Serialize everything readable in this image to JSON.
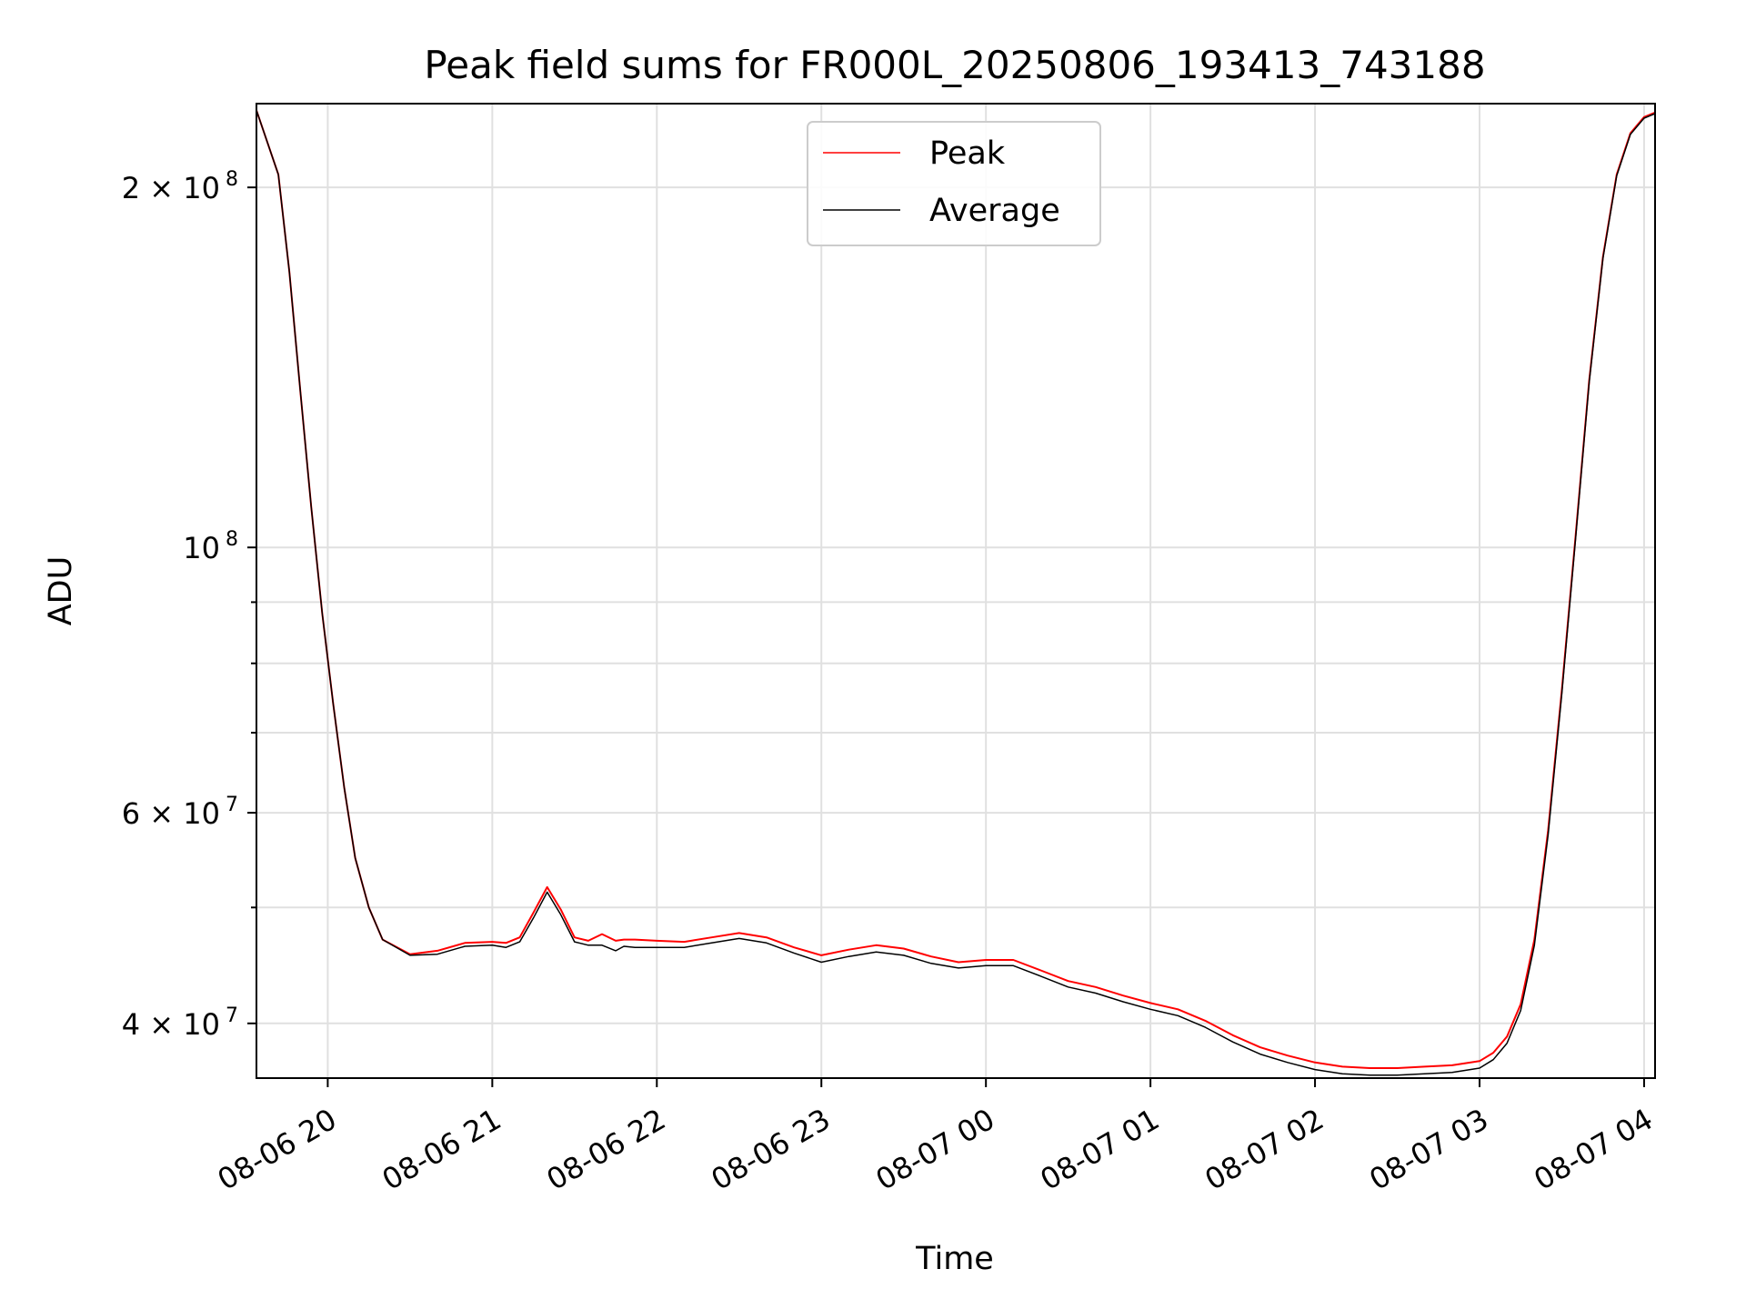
{
  "chart_data": {
    "type": "line",
    "title": "Peak field sums for FR000L_20250806_193413_743188",
    "xlabel": "Time",
    "ylabel": "ADU",
    "yscale": "log",
    "grid": true,
    "legend_position": "top-center",
    "xlim": [
      "2025-08-06 19:34",
      "2025-08-07 04:04"
    ],
    "ylim": [
      36000000,
      235000000
    ],
    "x_ticks": [
      {
        "value": "2025-08-06 20:00",
        "label": "08-06 20"
      },
      {
        "value": "2025-08-06 21:00",
        "label": "08-06 21"
      },
      {
        "value": "2025-08-06 22:00",
        "label": "08-06 22"
      },
      {
        "value": "2025-08-06 23:00",
        "label": "08-06 23"
      },
      {
        "value": "2025-08-07 00:00",
        "label": "08-07 00"
      },
      {
        "value": "2025-08-07 01:00",
        "label": "08-07 01"
      },
      {
        "value": "2025-08-07 02:00",
        "label": "08-07 02"
      },
      {
        "value": "2025-08-07 03:00",
        "label": "08-07 03"
      },
      {
        "value": "2025-08-07 04:00",
        "label": "08-07 04"
      }
    ],
    "y_ticks_major": [
      {
        "value": 40000000,
        "label": "4 × 10",
        "exp": "7"
      },
      {
        "value": 60000000,
        "label": "6 × 10",
        "exp": "7"
      },
      {
        "value": 100000000,
        "label": "10",
        "exp": "8"
      },
      {
        "value": 200000000,
        "label": "2 × 10",
        "exp": "8"
      }
    ],
    "y_ticks_minor": [
      50000000,
      70000000,
      80000000,
      90000000,
      300000000
    ],
    "series": [
      {
        "name": "Peak",
        "color": "#ff0000",
        "x": [
          "2025-08-06 19:34",
          "2025-08-06 19:42",
          "2025-08-06 19:46",
          "2025-08-06 19:50",
          "2025-08-06 19:54",
          "2025-08-06 19:58",
          "2025-08-06 20:02",
          "2025-08-06 20:06",
          "2025-08-06 20:10",
          "2025-08-06 20:15",
          "2025-08-06 20:20",
          "2025-08-06 20:30",
          "2025-08-06 20:40",
          "2025-08-06 20:50",
          "2025-08-06 21:00",
          "2025-08-06 21:05",
          "2025-08-06 21:10",
          "2025-08-06 21:15",
          "2025-08-06 21:20",
          "2025-08-06 21:25",
          "2025-08-06 21:30",
          "2025-08-06 21:35",
          "2025-08-06 21:40",
          "2025-08-06 21:45",
          "2025-08-06 21:48",
          "2025-08-06 21:52",
          "2025-08-06 22:00",
          "2025-08-06 22:10",
          "2025-08-06 22:20",
          "2025-08-06 22:30",
          "2025-08-06 22:40",
          "2025-08-06 22:50",
          "2025-08-06 23:00",
          "2025-08-06 23:10",
          "2025-08-06 23:20",
          "2025-08-06 23:30",
          "2025-08-06 23:40",
          "2025-08-06 23:50",
          "2025-08-07 00:00",
          "2025-08-07 00:10",
          "2025-08-07 00:20",
          "2025-08-07 00:30",
          "2025-08-07 00:40",
          "2025-08-07 00:50",
          "2025-08-07 01:00",
          "2025-08-07 01:10",
          "2025-08-07 01:20",
          "2025-08-07 01:30",
          "2025-08-07 01:40",
          "2025-08-07 01:50",
          "2025-08-07 02:00",
          "2025-08-07 02:10",
          "2025-08-07 02:20",
          "2025-08-07 02:30",
          "2025-08-07 02:40",
          "2025-08-07 02:50",
          "2025-08-07 03:00",
          "2025-08-07 03:05",
          "2025-08-07 03:10",
          "2025-08-07 03:15",
          "2025-08-07 03:20",
          "2025-08-07 03:25",
          "2025-08-07 03:30",
          "2025-08-07 03:35",
          "2025-08-07 03:40",
          "2025-08-07 03:45",
          "2025-08-07 03:50",
          "2025-08-07 03:55",
          "2025-08-07 04:00",
          "2025-08-07 04:04"
        ],
        "y": [
          232000000,
          205000000,
          170000000,
          135000000,
          108000000,
          88000000,
          74000000,
          63000000,
          55000000,
          50000000,
          47000000,
          45700000,
          46000000,
          46700000,
          46800000,
          46700000,
          47200000,
          49500000,
          52000000,
          49800000,
          47200000,
          46900000,
          47500000,
          46900000,
          47000000,
          47000000,
          46900000,
          46800000,
          47200000,
          47600000,
          47200000,
          46300000,
          45600000,
          46100000,
          46500000,
          46200000,
          45500000,
          45000000,
          45200000,
          45200000,
          44300000,
          43400000,
          42900000,
          42200000,
          41600000,
          41100000,
          40200000,
          39100000,
          38200000,
          37600000,
          37100000,
          36800000,
          36700000,
          36700000,
          36800000,
          36900000,
          37200000,
          37800000,
          39000000,
          41500000,
          47000000,
          58000000,
          76000000,
          102000000,
          138000000,
          175000000,
          205000000,
          222000000,
          229000000,
          231000000
        ]
      },
      {
        "name": "Average",
        "color": "#000000",
        "x": [
          "2025-08-06 19:34",
          "2025-08-06 19:42",
          "2025-08-06 19:46",
          "2025-08-06 19:50",
          "2025-08-06 19:54",
          "2025-08-06 19:58",
          "2025-08-06 20:02",
          "2025-08-06 20:06",
          "2025-08-06 20:10",
          "2025-08-06 20:15",
          "2025-08-06 20:20",
          "2025-08-06 20:30",
          "2025-08-06 20:40",
          "2025-08-06 20:50",
          "2025-08-06 21:00",
          "2025-08-06 21:05",
          "2025-08-06 21:10",
          "2025-08-06 21:15",
          "2025-08-06 21:20",
          "2025-08-06 21:25",
          "2025-08-06 21:30",
          "2025-08-06 21:35",
          "2025-08-06 21:40",
          "2025-08-06 21:45",
          "2025-08-06 21:48",
          "2025-08-06 21:52",
          "2025-08-06 22:00",
          "2025-08-06 22:10",
          "2025-08-06 22:20",
          "2025-08-06 22:30",
          "2025-08-06 22:40",
          "2025-08-06 22:50",
          "2025-08-06 23:00",
          "2025-08-06 23:10",
          "2025-08-06 23:20",
          "2025-08-06 23:30",
          "2025-08-06 23:40",
          "2025-08-06 23:50",
          "2025-08-07 00:00",
          "2025-08-07 00:10",
          "2025-08-07 00:20",
          "2025-08-07 00:30",
          "2025-08-07 00:40",
          "2025-08-07 00:50",
          "2025-08-07 01:00",
          "2025-08-07 01:10",
          "2025-08-07 01:20",
          "2025-08-07 01:30",
          "2025-08-07 01:40",
          "2025-08-07 01:50",
          "2025-08-07 02:00",
          "2025-08-07 02:10",
          "2025-08-07 02:20",
          "2025-08-07 02:30",
          "2025-08-07 02:40",
          "2025-08-07 02:50",
          "2025-08-07 03:00",
          "2025-08-07 03:05",
          "2025-08-07 03:10",
          "2025-08-07 03:15",
          "2025-08-07 03:20",
          "2025-08-07 03:25",
          "2025-08-07 03:30",
          "2025-08-07 03:35",
          "2025-08-07 03:40",
          "2025-08-07 03:45",
          "2025-08-07 03:50",
          "2025-08-07 03:55",
          "2025-08-07 04:00",
          "2025-08-07 04:04"
        ],
        "y": [
          232000000,
          205000000,
          170000000,
          135000000,
          108000000,
          88000000,
          74000000,
          63000000,
          55000000,
          50000000,
          47000000,
          45600000,
          45700000,
          46400000,
          46500000,
          46300000,
          46800000,
          49000000,
          51500000,
          49300000,
          46800000,
          46500000,
          46500000,
          46000000,
          46400000,
          46300000,
          46300000,
          46300000,
          46700000,
          47100000,
          46700000,
          45800000,
          45000000,
          45500000,
          45900000,
          45600000,
          44900000,
          44500000,
          44700000,
          44700000,
          43800000,
          42900000,
          42400000,
          41700000,
          41100000,
          40600000,
          39700000,
          38600000,
          37700000,
          37100000,
          36600000,
          36300000,
          36200000,
          36200000,
          36300000,
          36400000,
          36700000,
          37300000,
          38500000,
          41000000,
          46500000,
          57500000,
          75500000,
          101500000,
          137500000,
          174500000,
          204500000,
          221500000,
          228500000,
          230500000
        ]
      }
    ]
  }
}
